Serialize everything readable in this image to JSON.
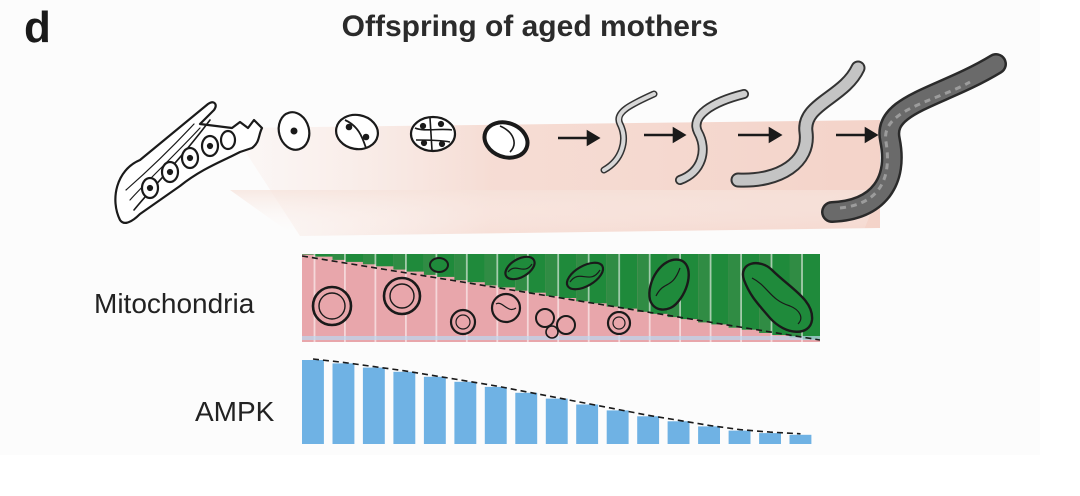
{
  "panel_label": "d",
  "title": "Offspring of aged mothers",
  "rows": {
    "mitochondria": {
      "label": "Mitochondria"
    },
    "ampk": {
      "label": "AMPK"
    }
  },
  "stages": [
    "gonad-arm",
    "1-cell-embryo",
    "2-cell-embryo",
    "4-cell-embryo",
    "egg",
    "L1-larva",
    "L2-larva",
    "L3-larva",
    "adult"
  ],
  "mitochondria_bars": {
    "count": 17,
    "pink_fraction": [
      0.97,
      0.91,
      0.86,
      0.8,
      0.74,
      0.68,
      0.62,
      0.56,
      0.5,
      0.44,
      0.38,
      0.32,
      0.26,
      0.2,
      0.14,
      0.08,
      0.03
    ]
  },
  "ampk_bars": {
    "count": 17,
    "level": [
      1.0,
      0.96,
      0.91,
      0.86,
      0.8,
      0.74,
      0.68,
      0.61,
      0.54,
      0.47,
      0.4,
      0.33,
      0.27,
      0.21,
      0.16,
      0.13,
      0.11
    ]
  },
  "colors": {
    "pink": "#e8a6ab",
    "green": "#1f8a3b",
    "blue": "#6fb2e4",
    "ink": "#1a1a1a",
    "glow": "#f6d9cf",
    "worm_light": "#c9c9c9",
    "worm_dark": "#555555"
  }
}
